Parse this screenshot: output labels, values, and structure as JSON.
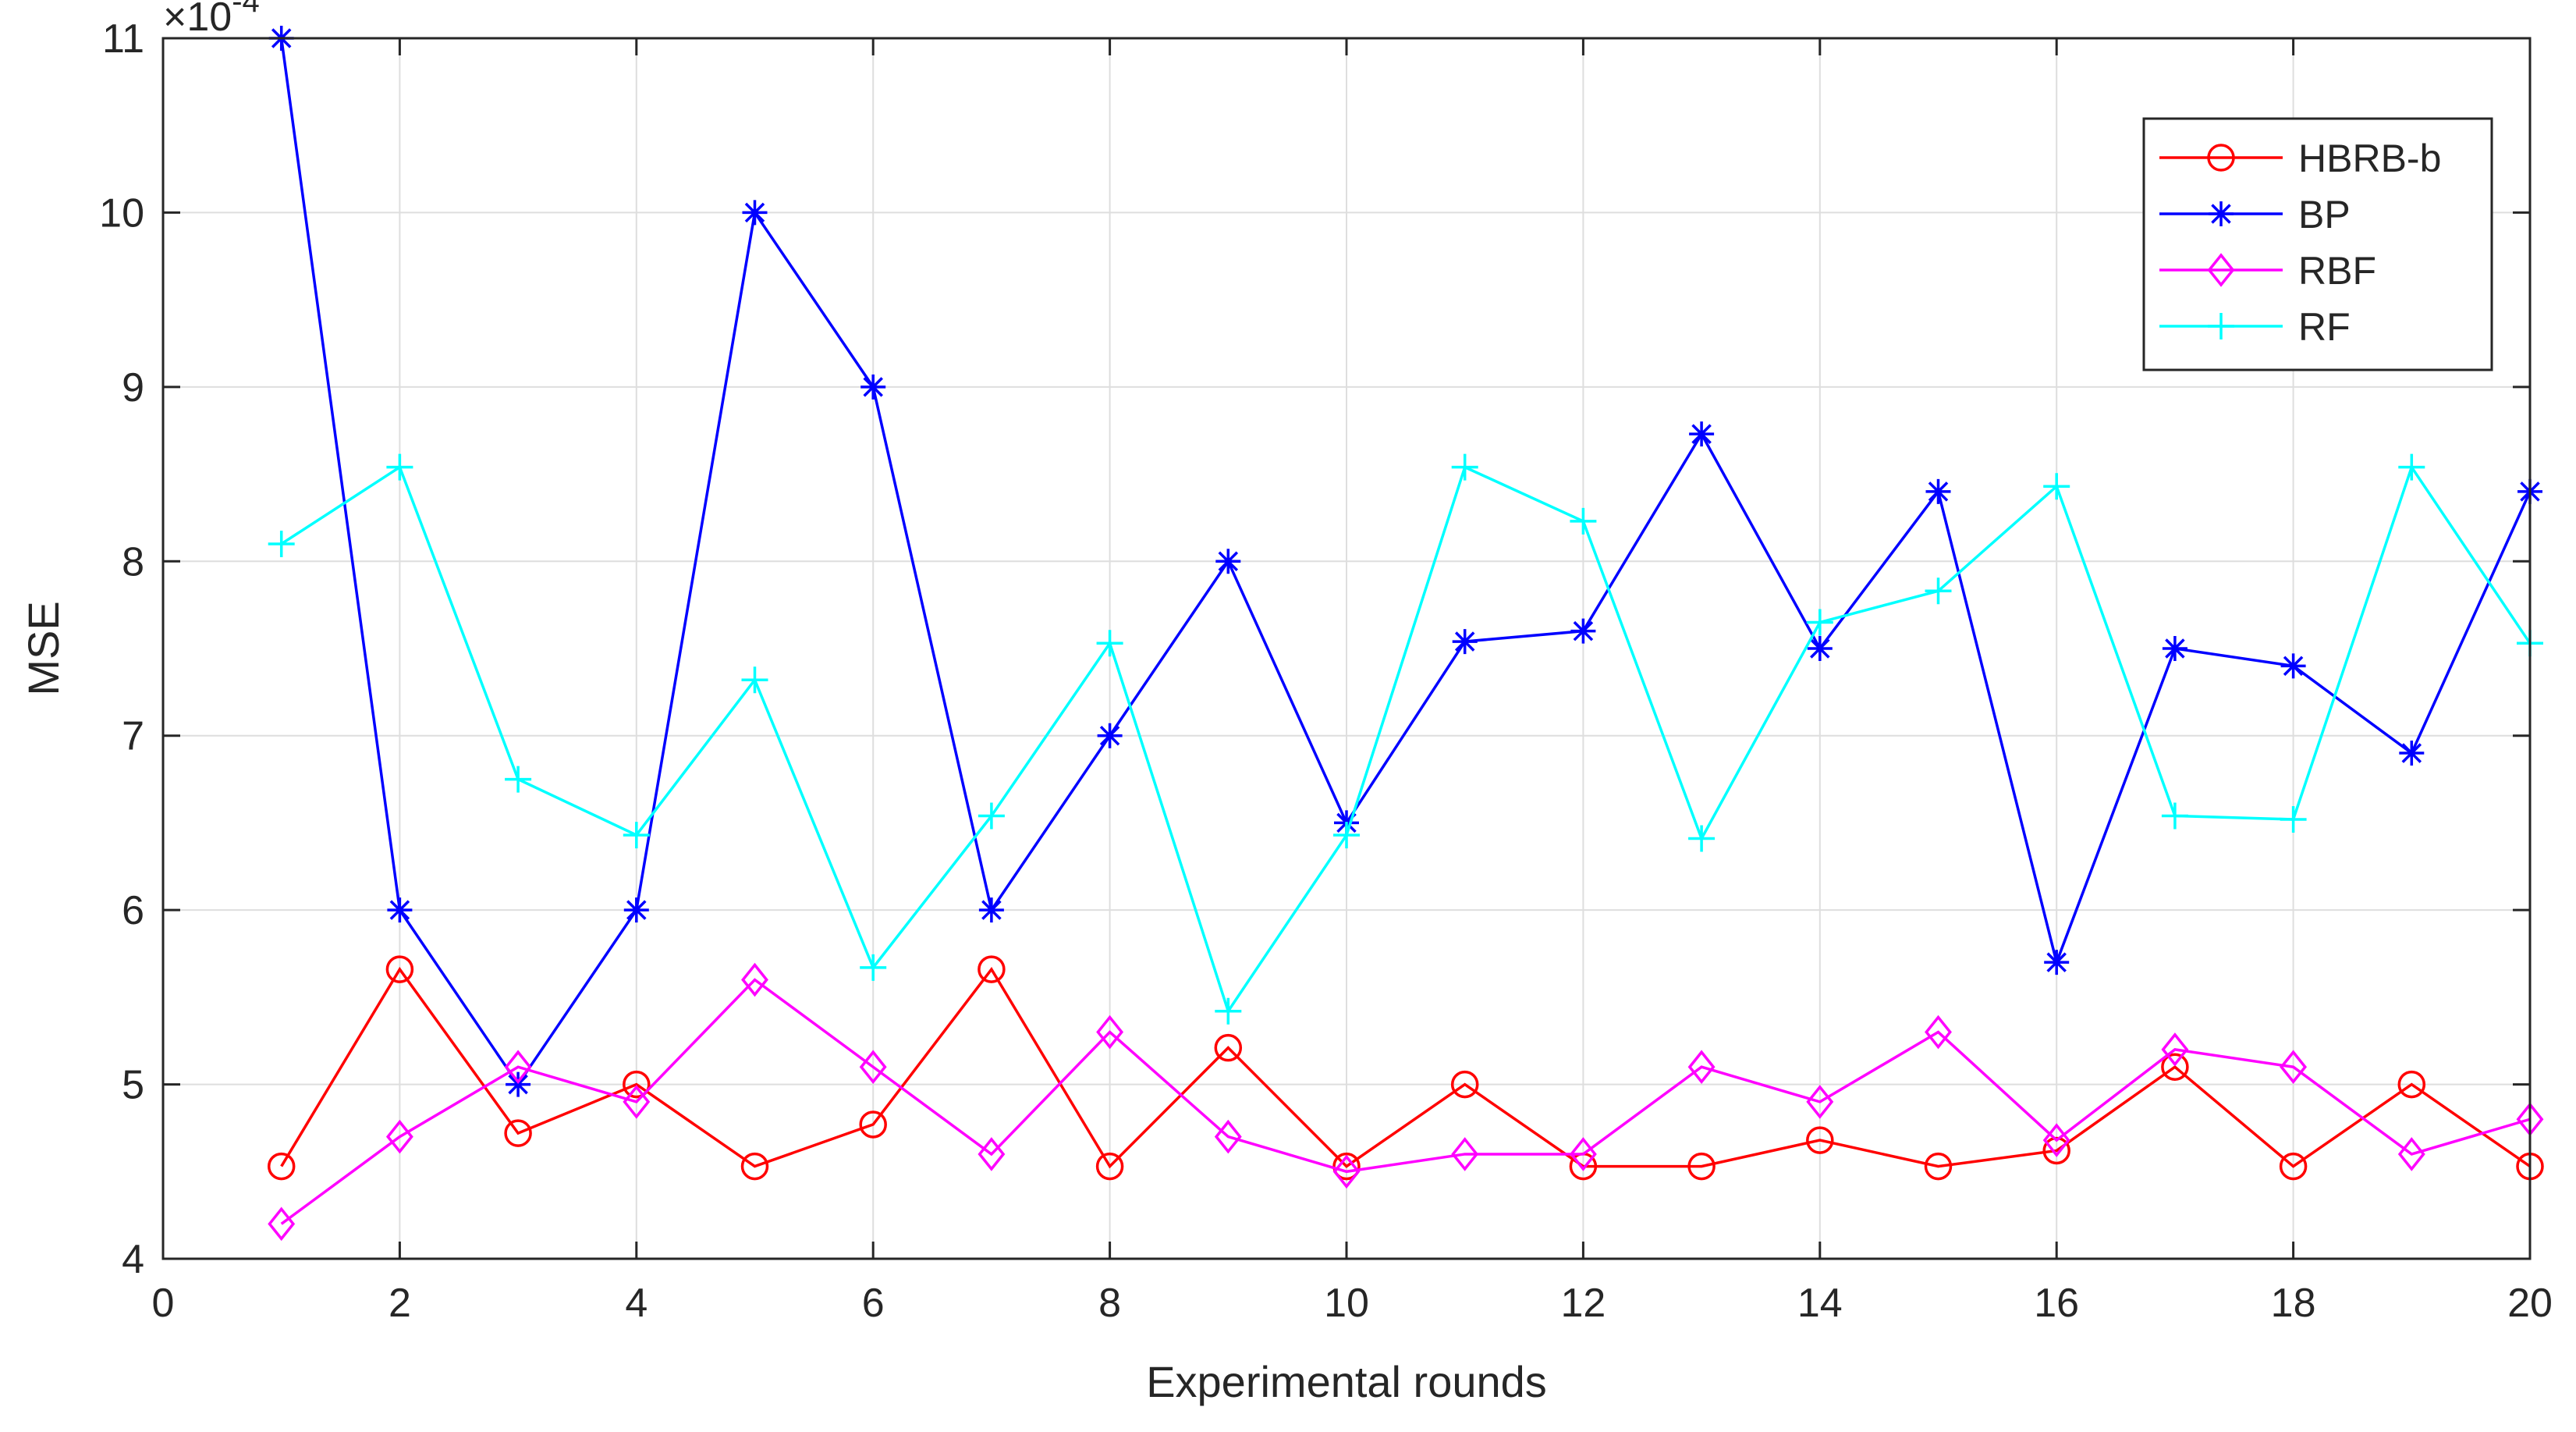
{
  "chart_data": {
    "type": "line",
    "xlabel": "Experimental rounds",
    "ylabel": "MSE",
    "y_scale_label": {
      "base": "×10",
      "exponent": "-4"
    },
    "xlim": [
      0,
      20
    ],
    "ylim": [
      4,
      11
    ],
    "x_ticks": [
      "0",
      "2",
      "4",
      "6",
      "8",
      "10",
      "12",
      "14",
      "16",
      "18",
      "20"
    ],
    "y_ticks": [
      "4",
      "5",
      "6",
      "7",
      "8",
      "9",
      "10",
      "11"
    ],
    "grid": true,
    "legend_position": "top-right",
    "x": [
      1,
      2,
      3,
      4,
      5,
      6,
      7,
      8,
      9,
      10,
      11,
      12,
      13,
      14,
      15,
      16,
      17,
      18,
      19,
      20
    ],
    "series": [
      {
        "name": "HBRB-b",
        "color": "#ff0000",
        "marker": "circle",
        "values": [
          4.53,
          5.66,
          4.72,
          5.0,
          4.53,
          4.77,
          5.66,
          4.53,
          5.21,
          4.53,
          5.0,
          4.53,
          4.53,
          4.68,
          4.53,
          4.62,
          5.1,
          4.53,
          5.0,
          4.53
        ]
      },
      {
        "name": "BP",
        "color": "#0000ff",
        "marker": "star",
        "values": [
          11.0,
          6.0,
          5.0,
          6.0,
          10.0,
          9.0,
          6.0,
          7.0,
          8.0,
          6.5,
          7.54,
          7.6,
          8.73,
          7.5,
          8.4,
          5.7,
          7.5,
          7.4,
          6.9,
          8.4
        ]
      },
      {
        "name": "RBF",
        "color": "#ff00ff",
        "marker": "diamond",
        "values": [
          4.2,
          4.7,
          5.1,
          4.9,
          5.6,
          5.1,
          4.6,
          5.3,
          4.7,
          4.5,
          4.6,
          4.6,
          5.1,
          4.9,
          5.3,
          4.68,
          5.2,
          5.1,
          4.6,
          4.8
        ]
      },
      {
        "name": "RF",
        "color": "#00ffff",
        "marker": "plus",
        "values": [
          8.1,
          8.54,
          6.75,
          6.43,
          7.32,
          5.67,
          6.54,
          7.53,
          5.42,
          6.43,
          8.54,
          8.23,
          6.41,
          7.65,
          7.83,
          8.43,
          6.54,
          6.52,
          8.54,
          7.53
        ]
      }
    ]
  }
}
